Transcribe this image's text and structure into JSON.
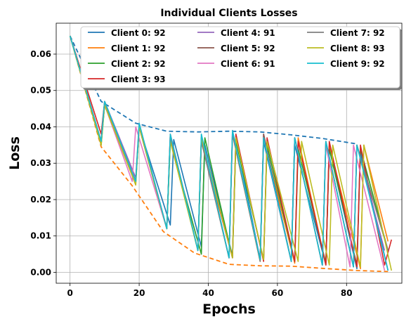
{
  "chart_data": {
    "type": "line",
    "title": "Individual Clients Losses",
    "xlabel": "Epochs",
    "ylabel": "Loss",
    "xlim": [
      -4,
      96
    ],
    "ylim": [
      -0.003,
      0.0685
    ],
    "xticks": [
      0,
      20,
      40,
      60,
      80
    ],
    "xtick_labels": [
      "0",
      "20",
      "40",
      "60",
      "80"
    ],
    "yticks": [
      0.0,
      0.01,
      0.02,
      0.03,
      0.04,
      0.05,
      0.06
    ],
    "ytick_labels": [
      "0.00",
      "0.01",
      "0.02",
      "0.03",
      "0.04",
      "0.05",
      "0.06"
    ],
    "grid": true,
    "legend": {
      "placement": "top-right",
      "columns": 3
    },
    "envelopes": [
      {
        "color": "#1f77b4",
        "style": "dashed",
        "x": [
          0,
          9,
          19,
          28,
          37,
          46,
          55,
          64,
          73,
          83
        ],
        "y": [
          0.065,
          0.047,
          0.041,
          0.0388,
          0.0386,
          0.0388,
          0.0386,
          0.0378,
          0.0368,
          0.0353
        ]
      },
      {
        "color": "#ff7f0e",
        "style": "dashed",
        "x": [
          0,
          9,
          18,
          27,
          36,
          46,
          55,
          64,
          73,
          83,
          92
        ],
        "y": [
          0.065,
          0.0345,
          0.0238,
          0.0112,
          0.0053,
          0.0022,
          0.0018,
          0.0017,
          0.0011,
          0.0005,
          0.0002
        ]
      }
    ],
    "series": [
      {
        "name": "Client 0: 92",
        "color": "#1f77b4",
        "x": [
          0,
          9,
          10,
          19,
          20,
          29,
          30,
          38,
          39,
          47,
          48,
          55,
          56,
          64,
          65,
          74,
          75,
          83,
          84,
          92
        ],
        "y": [
          0.065,
          0.036,
          0.047,
          0.025,
          0.04,
          0.013,
          0.0365,
          0.007,
          0.035,
          0.0045,
          0.037,
          0.0035,
          0.036,
          0.003,
          0.035,
          0.002,
          0.034,
          0.001,
          0.033,
          0.0005
        ]
      },
      {
        "name": "Client 1: 92",
        "color": "#ff7f0e",
        "x": [
          0,
          9,
          10,
          19,
          20,
          28,
          29,
          37,
          38,
          46,
          47,
          55,
          56,
          65,
          66,
          74,
          75,
          84,
          85,
          92
        ],
        "y": [
          0.065,
          0.036,
          0.047,
          0.025,
          0.04,
          0.012,
          0.038,
          0.006,
          0.037,
          0.004,
          0.038,
          0.003,
          0.037,
          0.0025,
          0.037,
          0.002,
          0.035,
          0.001,
          0.035,
          0.0085
        ]
      },
      {
        "name": "Client 2: 92",
        "color": "#2ca02c",
        "x": [
          0,
          9,
          10,
          19,
          20,
          28,
          29,
          38,
          39,
          47,
          48,
          56,
          57,
          65,
          66,
          74,
          75,
          83,
          84,
          92
        ],
        "y": [
          0.065,
          0.035,
          0.046,
          0.025,
          0.04,
          0.012,
          0.036,
          0.005,
          0.037,
          0.004,
          0.036,
          0.0035,
          0.035,
          0.003,
          0.034,
          0.0025,
          0.034,
          0.002,
          0.034,
          0.006
        ]
      },
      {
        "name": "Client 3: 93",
        "color": "#d62728",
        "x": [
          0,
          9,
          10,
          19,
          20,
          28,
          29,
          37,
          38,
          47,
          48,
          56,
          57,
          65,
          66,
          74,
          75,
          83,
          84,
          91,
          93
        ],
        "y": [
          0.065,
          0.038,
          0.047,
          0.025,
          0.04,
          0.012,
          0.037,
          0.006,
          0.036,
          0.004,
          0.038,
          0.003,
          0.037,
          0.003,
          0.036,
          0.002,
          0.036,
          0.0015,
          0.035,
          0.002,
          0.009
        ]
      },
      {
        "name": "Client 4: 91",
        "color": "#9467bd",
        "x": [
          0,
          9,
          10,
          19,
          20,
          28,
          29,
          37,
          38,
          46,
          47,
          55,
          56,
          64,
          65,
          73,
          74,
          82,
          83,
          91
        ],
        "y": [
          0.065,
          0.036,
          0.047,
          0.026,
          0.041,
          0.012,
          0.038,
          0.006,
          0.037,
          0.004,
          0.039,
          0.0035,
          0.038,
          0.003,
          0.037,
          0.002,
          0.036,
          0.0015,
          0.035,
          0.006
        ]
      },
      {
        "name": "Client 5: 92",
        "color": "#8c564b",
        "x": [
          0,
          9,
          10,
          19,
          20,
          28,
          29,
          37,
          38,
          46,
          47,
          55,
          56,
          64,
          65,
          73,
          74,
          82,
          83,
          92
        ],
        "y": [
          0.065,
          0.036,
          0.046,
          0.025,
          0.04,
          0.012,
          0.037,
          0.006,
          0.037,
          0.004,
          0.038,
          0.0035,
          0.038,
          0.003,
          0.037,
          0.002,
          0.036,
          0.0015,
          0.035,
          0.006
        ]
      },
      {
        "name": "Client 6: 91",
        "color": "#e377c2",
        "x": [
          0,
          9,
          10,
          18,
          19,
          28,
          29,
          37,
          38,
          46,
          47,
          55,
          56,
          64,
          65,
          73,
          74,
          81,
          82,
          91
        ],
        "y": [
          0.065,
          0.036,
          0.046,
          0.025,
          0.04,
          0.012,
          0.038,
          0.006,
          0.037,
          0.004,
          0.039,
          0.0035,
          0.037,
          0.003,
          0.037,
          0.002,
          0.035,
          0.0015,
          0.035,
          0.0005
        ]
      },
      {
        "name": "Client 7: 92",
        "color": "#7f7f7f",
        "x": [
          0,
          9,
          10,
          19,
          20,
          28,
          29,
          37,
          38,
          46,
          47,
          55,
          56,
          64,
          65,
          73,
          74,
          82,
          83,
          92
        ],
        "y": [
          0.065,
          0.036,
          0.046,
          0.025,
          0.04,
          0.012,
          0.037,
          0.006,
          0.036,
          0.004,
          0.038,
          0.003,
          0.037,
          0.003,
          0.037,
          0.002,
          0.036,
          0.0015,
          0.035,
          0.006
        ]
      },
      {
        "name": "Client 8: 93",
        "color": "#bcbd22",
        "x": [
          0,
          9,
          10,
          19,
          20,
          28,
          29,
          37,
          38,
          47,
          48,
          56,
          57,
          66,
          67,
          75,
          76,
          84,
          85,
          93
        ],
        "y": [
          0.065,
          0.035,
          0.046,
          0.024,
          0.04,
          0.012,
          0.036,
          0.006,
          0.037,
          0.004,
          0.037,
          0.0035,
          0.036,
          0.003,
          0.036,
          0.002,
          0.035,
          0.0015,
          0.035,
          0.0005
        ]
      },
      {
        "name": "Client 9: 92",
        "color": "#17becf",
        "x": [
          0,
          9,
          10,
          19,
          20,
          28,
          29,
          37,
          38,
          46,
          47,
          55,
          56,
          64,
          65,
          73,
          74,
          82,
          83,
          92
        ],
        "y": [
          0.065,
          0.036,
          0.047,
          0.025,
          0.041,
          0.012,
          0.038,
          0.006,
          0.038,
          0.004,
          0.039,
          0.0035,
          0.037,
          0.003,
          0.037,
          0.002,
          0.036,
          0.0015,
          0.035,
          0.0005
        ]
      }
    ]
  }
}
